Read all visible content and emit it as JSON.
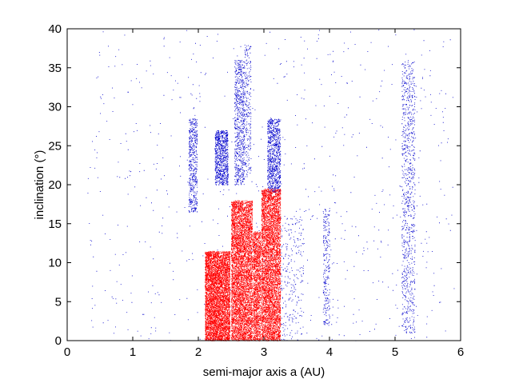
{
  "chart_data": {
    "type": "scatter",
    "title": "",
    "xlabel": "semi-major axis a   (AU)",
    "ylabel": "inclination  (°)",
    "xlim": [
      0,
      6
    ],
    "ylim": [
      0,
      40
    ],
    "xticks": [
      0,
      1,
      2,
      3,
      4,
      5,
      6
    ],
    "yticks": [
      0,
      5,
      10,
      15,
      20,
      25,
      30,
      35,
      40
    ],
    "colors": {
      "blue": "#0000cc",
      "red": "#ff0000"
    },
    "series": [
      {
        "color": "blue",
        "clusters": [
          {
            "a_range": [
              0.3,
              5.9
            ],
            "i_range": [
              0,
              40
            ],
            "count": 700
          },
          {
            "a_range": [
              1.85,
              1.98
            ],
            "i_range": [
              16.5,
              28.5
            ],
            "count": 500
          },
          {
            "a_range": [
              2.25,
              2.45
            ],
            "i_range": [
              20,
              27
            ],
            "count": 800
          },
          {
            "a_range": [
              2.55,
              2.7
            ],
            "i_range": [
              20,
              36
            ],
            "count": 700
          },
          {
            "a_range": [
              2.7,
              2.8
            ],
            "i_range": [
              21,
              38
            ],
            "count": 250
          },
          {
            "a_range": [
              3.05,
              3.25
            ],
            "i_range": [
              19,
              28.5
            ],
            "count": 900
          },
          {
            "a_range": [
              3.25,
              3.6
            ],
            "i_range": [
              0,
              16
            ],
            "count": 250
          },
          {
            "a_range": [
              3.9,
              4.0
            ],
            "i_range": [
              2,
              17
            ],
            "count": 250
          },
          {
            "a_range": [
              5.1,
              5.3
            ],
            "i_range": [
              1,
              36
            ],
            "count": 900
          }
        ]
      },
      {
        "color": "red",
        "clusters": [
          {
            "a_range": [
              2.1,
              2.48
            ],
            "i_range": [
              0,
              11.5
            ],
            "count": 7000
          },
          {
            "a_range": [
              2.5,
              2.82
            ],
            "i_range": [
              0,
              18
            ],
            "count": 7000
          },
          {
            "a_range": [
              2.83,
              2.95
            ],
            "i_range": [
              0,
              14
            ],
            "count": 1500
          },
          {
            "a_range": [
              2.96,
              3.25
            ],
            "i_range": [
              0,
              19.5
            ],
            "count": 5000
          }
        ]
      }
    ]
  }
}
